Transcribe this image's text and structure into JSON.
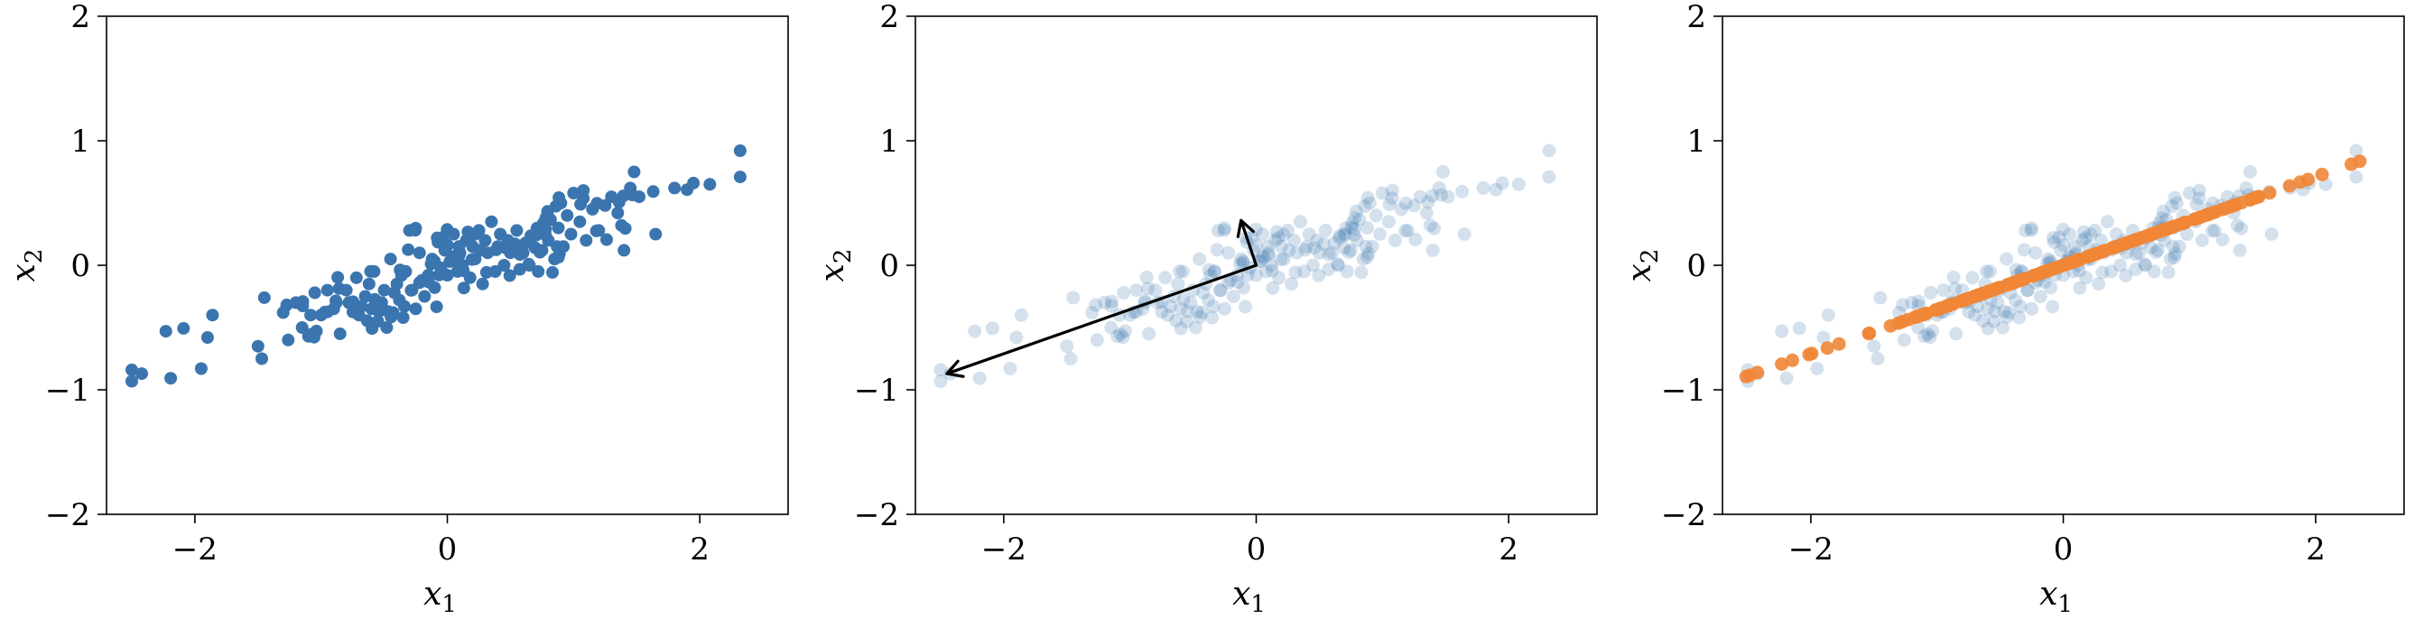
{
  "colors": {
    "blue": "#3b75af",
    "orange": "#ef8636"
  },
  "seed": [
    [
      -2.5,
      -0.84
    ],
    [
      -2.23,
      -0.53
    ],
    [
      -1.95,
      -0.83
    ],
    [
      -1.9,
      -0.58
    ],
    [
      -1.86,
      -0.4
    ],
    [
      -1.5,
      -0.65
    ],
    [
      -1.47,
      -0.75
    ],
    [
      -1.45,
      -0.26
    ],
    [
      -1.3,
      -0.38
    ],
    [
      -1.26,
      -0.6
    ],
    [
      -1.2,
      -0.3
    ],
    [
      -1.15,
      -0.5
    ],
    [
      -1.1,
      -0.57
    ],
    [
      -1.05,
      -0.22
    ],
    [
      -1.0,
      -0.4
    ],
    [
      -0.95,
      -0.2
    ],
    [
      -0.9,
      -0.35
    ],
    [
      -0.85,
      -0.55
    ],
    [
      -0.8,
      -0.2
    ],
    [
      -0.78,
      -0.3
    ],
    [
      -0.72,
      -0.1
    ],
    [
      -0.7,
      -0.4
    ],
    [
      -0.65,
      -0.25
    ],
    [
      -0.62,
      -0.15
    ],
    [
      -0.6,
      -0.35
    ],
    [
      -0.58,
      -0.05
    ],
    [
      -0.55,
      -0.45
    ],
    [
      -0.52,
      -0.3
    ],
    [
      -0.5,
      -0.2
    ],
    [
      -0.48,
      -0.5
    ],
    [
      -0.45,
      0.05
    ],
    [
      -0.43,
      -0.38
    ],
    [
      -0.4,
      -0.15
    ],
    [
      -0.38,
      -0.28
    ],
    [
      -0.35,
      -0.42
    ],
    [
      -0.33,
      -0.05
    ],
    [
      -0.3,
      0.28
    ],
    [
      -0.28,
      -0.2
    ],
    [
      -0.25,
      -0.35
    ],
    [
      -0.22,
      0.1
    ],
    [
      -0.2,
      -0.12
    ],
    [
      -0.18,
      -0.25
    ],
    [
      -0.15,
      -0.08
    ],
    [
      -0.12,
      0.05
    ],
    [
      -0.1,
      -0.18
    ],
    [
      -0.08,
      0.22
    ],
    [
      -0.05,
      -0.02
    ],
    [
      -0.02,
      0.12
    ],
    [
      0.0,
      -0.08
    ],
    [
      0.02,
      0.03
    ],
    [
      0.05,
      0.25
    ],
    [
      0.08,
      -0.05
    ],
    [
      0.1,
      0.1
    ],
    [
      0.12,
      0.0
    ],
    [
      0.15,
      0.2
    ],
    [
      0.18,
      -0.1
    ],
    [
      0.2,
      0.15
    ],
    [
      0.22,
      0.05
    ],
    [
      0.25,
      0.28
    ],
    [
      0.28,
      -0.15
    ],
    [
      0.3,
      0.2
    ],
    [
      0.32,
      0.1
    ],
    [
      0.35,
      0.35
    ],
    [
      0.38,
      -0.05
    ],
    [
      0.4,
      0.15
    ],
    [
      0.42,
      0.25
    ],
    [
      0.45,
      0.0
    ],
    [
      0.48,
      0.2
    ],
    [
      0.5,
      0.1
    ],
    [
      0.55,
      0.28
    ],
    [
      0.6,
      0.1
    ],
    [
      0.62,
      0.18
    ],
    [
      0.65,
      0.0
    ],
    [
      0.7,
      0.25
    ],
    [
      0.72,
      -0.05
    ],
    [
      0.75,
      0.12
    ],
    [
      0.78,
      0.38
    ],
    [
      0.8,
      0.2
    ],
    [
      0.85,
      0.05
    ],
    [
      0.88,
      0.3
    ],
    [
      0.9,
      0.5
    ],
    [
      0.92,
      0.15
    ],
    [
      0.95,
      0.4
    ],
    [
      0.98,
      0.25
    ],
    [
      1.0,
      0.58
    ],
    [
      1.05,
      0.35
    ],
    [
      1.1,
      0.2
    ],
    [
      1.15,
      0.45
    ],
    [
      1.2,
      0.28
    ],
    [
      1.25,
      0.48
    ],
    [
      1.3,
      0.55
    ],
    [
      1.35,
      0.42
    ],
    [
      1.38,
      0.32
    ],
    [
      1.4,
      0.12
    ],
    [
      1.45,
      0.62
    ],
    [
      1.48,
      0.75
    ],
    [
      1.52,
      0.55
    ],
    [
      1.65,
      0.25
    ],
    [
      1.8,
      0.62
    ],
    [
      1.95,
      0.66
    ],
    [
      2.08,
      0.65
    ],
    [
      2.32,
      0.92
    ],
    [
      -0.68,
      -0.33
    ],
    [
      -0.42,
      -0.22
    ],
    [
      -0.22,
      -0.14
    ],
    [
      0.06,
      0.06
    ],
    [
      0.26,
      0.12
    ],
    [
      0.46,
      0.14
    ],
    [
      -0.88,
      -0.3
    ],
    [
      0.66,
      0.22
    ]
  ],
  "chart_data": [
    {
      "type": "scatter",
      "xlabel": "x",
      "xlabel_sub": "1",
      "ylabel": "x",
      "ylabel_sub": "2",
      "xlim": [
        -2.7,
        2.7
      ],
      "ylim": [
        -2,
        2
      ],
      "xticks": [
        -2,
        0,
        2
      ],
      "yticks": [
        -2,
        -1,
        0,
        1,
        2
      ],
      "xtick_labels": [
        "−2",
        "0",
        "2"
      ],
      "ytick_labels": [
        "−2",
        "−1",
        "0",
        "1",
        "2"
      ],
      "series": [
        {
          "style": "solid-blue",
          "opacity": 1.0,
          "points_from": "seed",
          "n": 200,
          "jitter": 0.06
        }
      ]
    },
    {
      "type": "scatter",
      "xlabel": "x",
      "xlabel_sub": "1",
      "ylabel": "x",
      "ylabel_sub": "2",
      "xlim": [
        -2.7,
        2.7
      ],
      "ylim": [
        -2,
        2
      ],
      "xticks": [
        -2,
        0,
        2
      ],
      "yticks": [
        -2,
        -1,
        0,
        1,
        2
      ],
      "xtick_labels": [
        "−2",
        "0",
        "2"
      ],
      "ytick_labels": [
        "−2",
        "−1",
        "0",
        "1",
        "2"
      ],
      "series": [
        {
          "style": "faint-blue",
          "opacity": 0.22,
          "points_from": "seed",
          "n": 200,
          "jitter": 0.06
        }
      ],
      "arrows": [
        {
          "from": [
            0.0,
            0.0
          ],
          "to": [
            -2.45,
            -0.87
          ]
        },
        {
          "from": [
            0.0,
            0.0
          ],
          "to": [
            -0.12,
            0.36
          ]
        }
      ]
    },
    {
      "type": "scatter",
      "xlabel": "x",
      "xlabel_sub": "1",
      "ylabel": "x",
      "ylabel_sub": "2",
      "xlim": [
        -2.7,
        2.7
      ],
      "ylim": [
        -2,
        2
      ],
      "xticks": [
        -2,
        0,
        2
      ],
      "yticks": [
        -2,
        -1,
        0,
        1,
        2
      ],
      "xtick_labels": [
        "−2",
        "0",
        "2"
      ],
      "ytick_labels": [
        "−2",
        "−1",
        "0",
        "1",
        "2"
      ],
      "series": [
        {
          "style": "faint-blue",
          "opacity": 0.22,
          "points_from": "seed",
          "n": 200,
          "jitter": 0.06
        },
        {
          "style": "orange-projection",
          "opacity": 0.9,
          "points_from": "seed",
          "n": 200,
          "jitter": 0.06,
          "projection_direction": [
            0.942,
            0.335
          ]
        }
      ]
    }
  ]
}
